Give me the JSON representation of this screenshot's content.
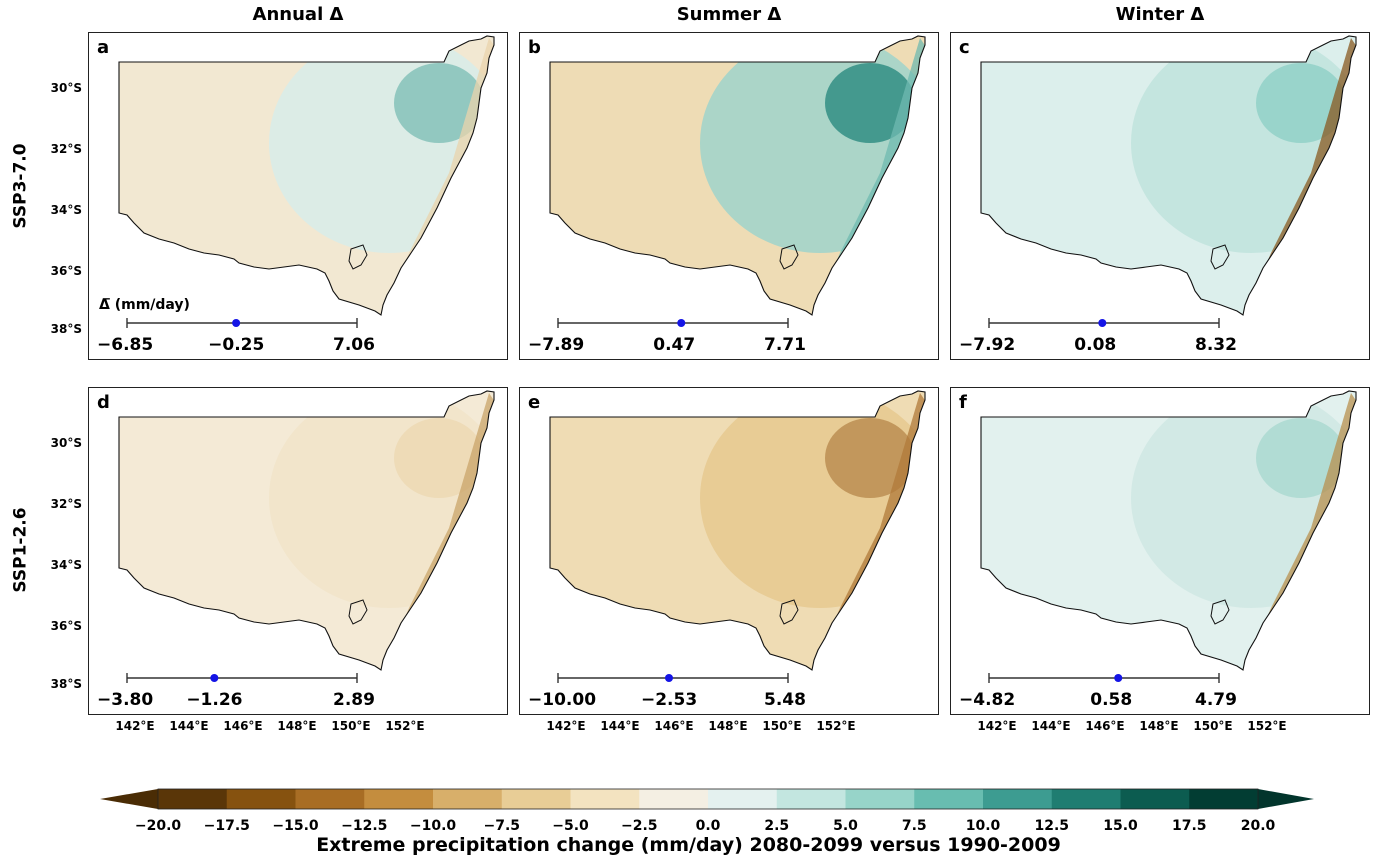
{
  "columns": [
    "Annual Δ",
    "Summer Δ",
    "Winter Δ"
  ],
  "rows": [
    "SSP3-7.0",
    "SSP1-2.6"
  ],
  "delta_axis_label": "Δ̅ (mm/day)",
  "lat_ticks": [
    "30°S",
    "32°S",
    "34°S",
    "36°S",
    "38°S"
  ],
  "lon_ticks": [
    "142°E",
    "144°E",
    "146°E",
    "148°E",
    "150°E",
    "152°E"
  ],
  "panels": [
    {
      "label": "a",
      "min": "−6.85",
      "mean": "−0.25",
      "max": "7.06",
      "min_v": -6.85,
      "mean_v": -0.25,
      "max_v": 7.06,
      "base": "#f2e8d2",
      "east": "#d8ecea",
      "hotspot": "#7fbfb6",
      "coast": "#e9d4ac"
    },
    {
      "label": "b",
      "min": "−7.89",
      "mean": "0.47",
      "max": "7.71",
      "min_v": -7.89,
      "mean_v": 0.47,
      "max_v": 7.71,
      "base": "#eedcb5",
      "east": "#9fd3cb",
      "hotspot": "#2a8a80",
      "coast": "#6fbab0"
    },
    {
      "label": "c",
      "min": "−7.92",
      "mean": "0.08",
      "max": "8.32",
      "min_v": -7.92,
      "mean_v": 0.08,
      "max_v": 8.32,
      "base": "#dcefec",
      "east": "#bfe3dd",
      "hotspot": "#8fcfc5",
      "coast": "#8a5a22"
    },
    {
      "label": "d",
      "min": "−3.80",
      "mean": "−1.26",
      "max": "2.89",
      "min_v": -3.8,
      "mean_v": -1.26,
      "max_v": 2.89,
      "base": "#f4ead6",
      "east": "#f1e4c9",
      "hotspot": "#ecd8b2",
      "coast": "#c9a46a"
    },
    {
      "label": "e",
      "min": "−10.00",
      "mean": "−2.53",
      "max": "5.48",
      "min_v": -10.0,
      "mean_v": -2.53,
      "max_v": 5.48,
      "base": "#efdcb4",
      "east": "#e6c98f",
      "hotspot": "#b88a4e",
      "coast": "#b07a3a"
    },
    {
      "label": "f",
      "min": "−4.82",
      "mean": "0.58",
      "max": "4.79",
      "min_v": -4.82,
      "mean_v": 0.58,
      "max_v": 4.79,
      "base": "#e2f1ee",
      "east": "#cfe8e3",
      "hotspot": "#a9d8d0",
      "coast": "#b8904f"
    }
  ],
  "colorbar": {
    "ticks": [
      "−20.0",
      "−17.5",
      "−15.0",
      "−12.5",
      "−10.0",
      "−7.5",
      "−5.0",
      "−2.5",
      "0.0",
      "2.5",
      "5.0",
      "7.5",
      "10.0",
      "12.5",
      "15.0",
      "17.5",
      "20.0"
    ],
    "colors": [
      "#5a3608",
      "#86520f",
      "#a86d24",
      "#c48d3e",
      "#d8af6a",
      "#e8cd96",
      "#f3e3c0",
      "#f4efe3",
      "#e4f1ef",
      "#c3e6e0",
      "#97d4c9",
      "#68bdb0",
      "#3d9c91",
      "#1f7d71",
      "#0c5c50",
      "#023d33"
    ],
    "label": "Extreme precipitation change (mm/day) 2080-2099 versus 1990-2009"
  }
}
